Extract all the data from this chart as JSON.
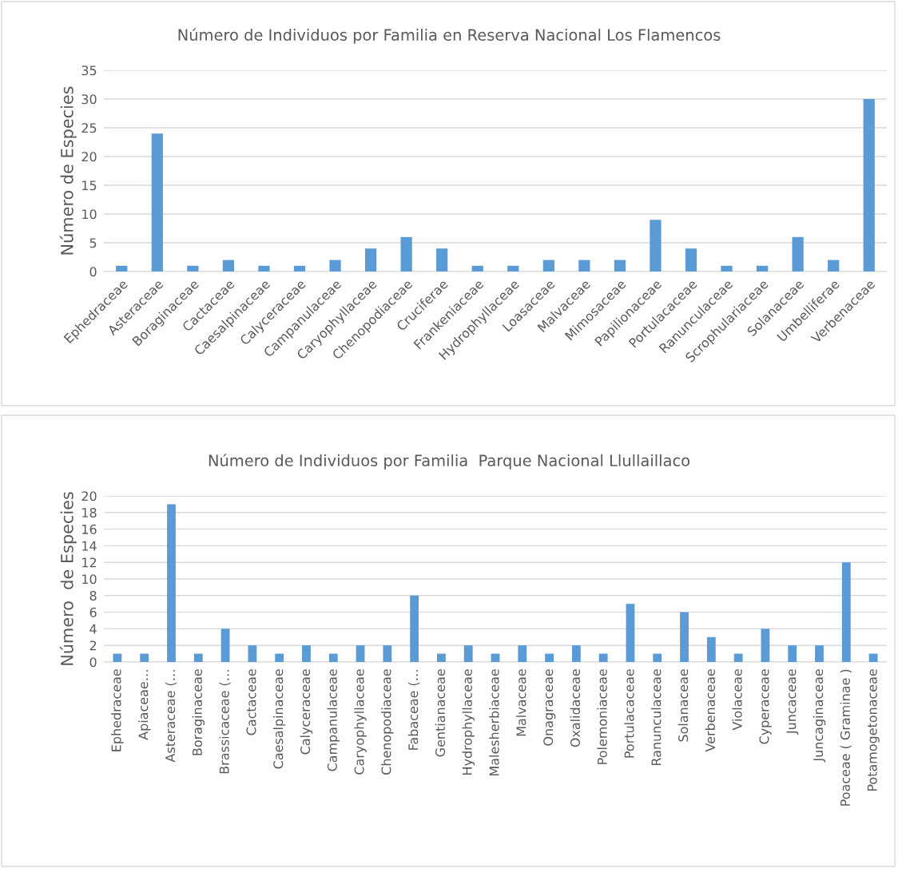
{
  "chart_data": [
    {
      "type": "bar",
      "title": "Número de Individuos por Familia en Reserva Nacional Los Flamencos",
      "ylabel": "Número de Especies",
      "categories": [
        "Ephedraceae",
        "Asteraceae",
        "Boraginaceae",
        "Cactaceae",
        "Caesalpinaceae",
        "Calyceraceae",
        "Campanulaceae",
        "Caryophyllaceae",
        "Chenopodiaceae",
        "Cruciferae",
        "Frankeniaceae",
        "Hydrophyllaceae",
        "Loasaceae",
        "Malvaceae",
        "Mimosaceae",
        "Papilionaceae",
        "Portulacaceae",
        "Ranunculaceae",
        "Scrophulariaceae",
        "Solanaceae",
        "Umbelliferae",
        "Verbenaceae"
      ],
      "values": [
        1,
        24,
        1,
        2,
        1,
        1,
        2,
        4,
        6,
        4,
        1,
        1,
        2,
        2,
        2,
        9,
        4,
        1,
        1,
        6,
        2,
        30
      ],
      "color": "#5b9bd5",
      "ylim": [
        0,
        35
      ],
      "yticks": [
        0,
        5,
        10,
        15,
        20,
        25,
        30,
        35
      ],
      "grid": "y",
      "legend": false
    },
    {
      "type": "bar",
      "title": "Número de Individuos por Familia  Parque Nacional Llullaillaco",
      "ylabel": "Número  de Especies",
      "categories": [
        "Ephedraceae",
        "Apiaceae…",
        "Asteraceae (…",
        "Boraginaceae",
        "Brassicaceae (…",
        "Cactaceae",
        "Caesalpinaceae",
        "Calyceraceae",
        "Campanulaceae",
        "Caryophyllaceae",
        "Chenopodiaceae",
        "Fabaceae (…",
        "Gentianaceae",
        "Hydrophyllaceae",
        "Malesherbiaceae",
        "Malvaceae",
        "Onagraceae",
        "Oxalidaceae",
        "Polemoniaceae",
        "Portulacaceae",
        "Ranunculaceae",
        "Solanaceae",
        "Verbenaceae",
        "Violaceae",
        "Cyperaceae",
        "Juncaceae",
        "Juncaginaceae",
        "Poaceae ( Graminae )",
        "Potamogetonaceae"
      ],
      "values": [
        1,
        1,
        19,
        1,
        4,
        2,
        1,
        2,
        1,
        2,
        2,
        8,
        1,
        2,
        1,
        2,
        1,
        2,
        1,
        7,
        1,
        6,
        3,
        1,
        4,
        2,
        2,
        12,
        1
      ],
      "color": "#5b9bd5",
      "ylim": [
        0,
        20
      ],
      "yticks": [
        0,
        2,
        4,
        6,
        8,
        10,
        12,
        14,
        16,
        18,
        20
      ],
      "grid": "y",
      "legend": false
    }
  ]
}
